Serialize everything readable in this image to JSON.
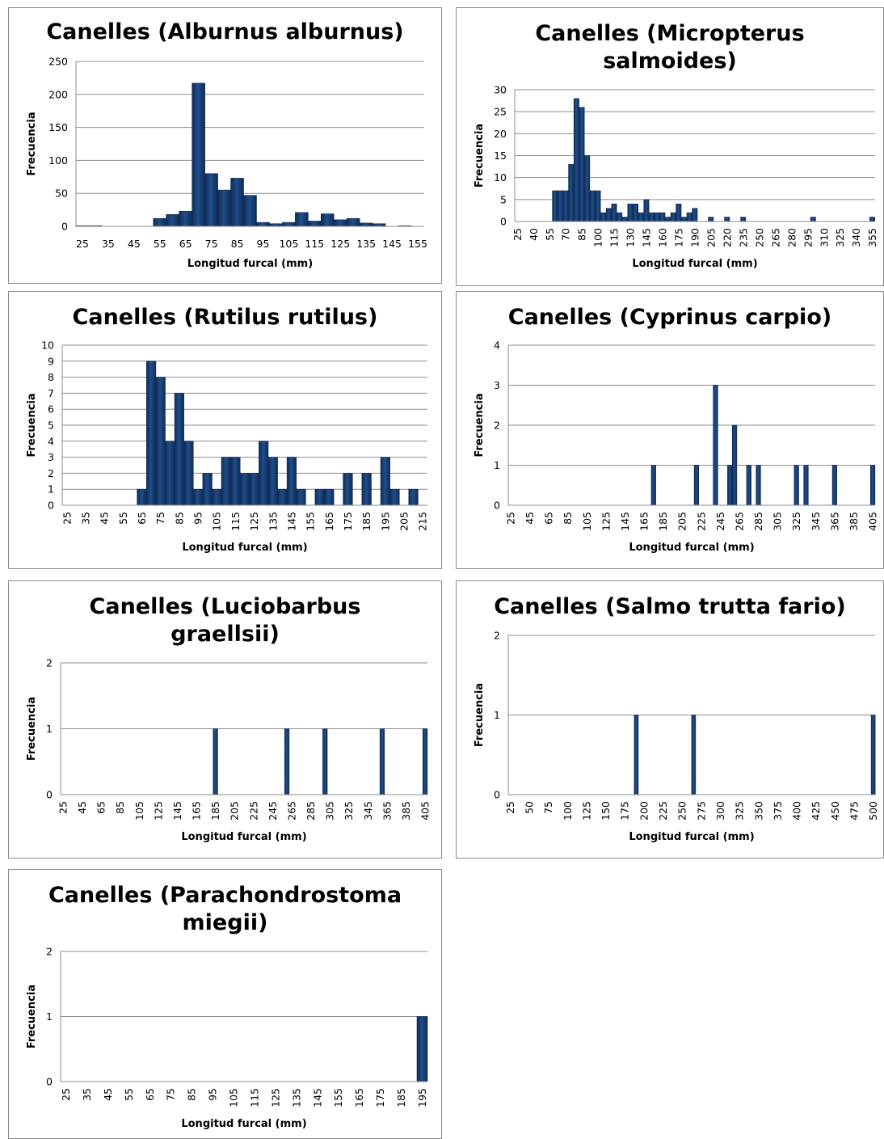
{
  "colors": {
    "bar": "#1f4e8c",
    "bar_dark": "#102c54",
    "grid": "#8c8c8c",
    "axis": "#8c8c8c"
  },
  "chart_data": [
    {
      "type": "bar",
      "title": "Canelles (Alburnus alburnus)",
      "xlabel": "Longitud furcal (mm)",
      "ylabel": "Frecuencia",
      "ylim": [
        0,
        250
      ],
      "yticks": [
        0,
        50,
        100,
        150,
        200,
        250
      ],
      "x_tick_labels": [
        "25",
        "35",
        "45",
        "55",
        "65",
        "75",
        "85",
        "95",
        "105",
        "115",
        "125",
        "135",
        "145",
        "155"
      ],
      "bin_start": 25,
      "bin_width": 5,
      "bin_count": 27,
      "values": {
        "25": 1,
        "30": 1,
        "55": 12,
        "60": 18,
        "65": 23,
        "70": 217,
        "75": 80,
        "80": 55,
        "85": 73,
        "90": 47,
        "95": 6,
        "100": 4,
        "105": 6,
        "110": 21,
        "115": 8,
        "120": 19,
        "125": 10,
        "130": 12,
        "135": 5,
        "140": 4,
        "150": 1
      }
    },
    {
      "type": "bar",
      "title": "Canelles (Micropterus salmoides)",
      "xlabel": "Longitud furcal (mm)",
      "ylabel": "Frecuencia",
      "ylim": [
        0,
        30
      ],
      "yticks": [
        0,
        5,
        10,
        15,
        20,
        25,
        30
      ],
      "x_tick_labels": [
        "25",
        "40",
        "55",
        "70",
        "85",
        "100",
        "115",
        "130",
        "145",
        "160",
        "175",
        "190",
        "205",
        "220",
        "235",
        "250",
        "265",
        "280",
        "295",
        "310",
        "325",
        "340",
        "355"
      ],
      "bin_start": 25,
      "bin_width": 5,
      "bin_count": 67,
      "values": {
        "60": 7,
        "65": 7,
        "70": 7,
        "75": 13,
        "80": 28,
        "85": 26,
        "90": 15,
        "95": 7,
        "100": 7,
        "105": 2,
        "110": 3,
        "115": 4,
        "120": 2,
        "125": 1,
        "130": 4,
        "135": 4,
        "140": 2,
        "145": 5,
        "150": 2,
        "155": 2,
        "160": 2,
        "165": 1,
        "170": 2,
        "175": 4,
        "180": 1,
        "185": 2,
        "190": 3,
        "205": 1,
        "220": 1,
        "235": 1,
        "300": 1,
        "355": 1
      }
    },
    {
      "type": "bar",
      "title": "Canelles (Rutilus rutilus)",
      "xlabel": "Longitud furcal (mm)",
      "ylabel": "Frecuencia",
      "ylim": [
        0,
        10
      ],
      "yticks": [
        0,
        1,
        2,
        3,
        4,
        5,
        6,
        7,
        8,
        9,
        10
      ],
      "x_tick_labels": [
        "25",
        "35",
        "45",
        "55",
        "65",
        "75",
        "85",
        "95",
        "105",
        "115",
        "125",
        "135",
        "145",
        "155",
        "165",
        "175",
        "185",
        "195",
        "205",
        "215"
      ],
      "bin_start": 25,
      "bin_width": 5,
      "bin_count": 39,
      "values": {
        "65": 1,
        "70": 9,
        "75": 8,
        "80": 4,
        "85": 7,
        "90": 4,
        "95": 1,
        "100": 2,
        "105": 1,
        "110": 3,
        "115": 3,
        "120": 2,
        "125": 2,
        "130": 4,
        "135": 3,
        "140": 1,
        "145": 3,
        "150": 1,
        "160": 1,
        "165": 1,
        "175": 2,
        "185": 2,
        "195": 3,
        "200": 1,
        "210": 1
      }
    },
    {
      "type": "bar",
      "title": "Canelles (Cyprinus carpio)",
      "xlabel": "Longitud furcal (mm)",
      "ylabel": "Frecuencia",
      "ylim": [
        0,
        4
      ],
      "yticks": [
        0,
        1,
        2,
        3,
        4
      ],
      "x_tick_labels": [
        "25",
        "45",
        "65",
        "85",
        "105",
        "125",
        "145",
        "165",
        "185",
        "205",
        "225",
        "245",
        "265",
        "285",
        "305",
        "325",
        "345",
        "365",
        "385",
        "405"
      ],
      "bin_start": 25,
      "bin_width": 5,
      "bin_count": 77,
      "values": {
        "175": 1,
        "220": 1,
        "240": 3,
        "255": 1,
        "260": 2,
        "275": 1,
        "285": 1,
        "325": 1,
        "335": 1,
        "365": 1,
        "405": 1
      }
    },
    {
      "type": "bar",
      "title": "Canelles (Luciobarbus graellsii)",
      "xlabel": "Longitud furcal (mm)",
      "ylabel": "Frecuencia",
      "ylim": [
        0,
        2
      ],
      "yticks": [
        0,
        1,
        2
      ],
      "x_tick_labels": [
        "25",
        "45",
        "65",
        "85",
        "105",
        "125",
        "145",
        "165",
        "185",
        "205",
        "225",
        "245",
        "265",
        "285",
        "305",
        "325",
        "345",
        "365",
        "385",
        "405"
      ],
      "bin_start": 25,
      "bin_width": 5,
      "bin_count": 77,
      "values": {
        "185": 1,
        "260": 1,
        "300": 1,
        "360": 1,
        "405": 1
      }
    },
    {
      "type": "bar",
      "title": "Canelles (Salmo trutta fario)",
      "xlabel": "Longitud furcal (mm)",
      "ylabel": "Frecuencia",
      "ylim": [
        0,
        2
      ],
      "yticks": [
        0,
        1,
        2
      ],
      "x_tick_labels": [
        "25",
        "50",
        "75",
        "100",
        "125",
        "150",
        "175",
        "200",
        "225",
        "250",
        "275",
        "300",
        "325",
        "350",
        "375",
        "400",
        "425",
        "450",
        "475",
        "500"
      ],
      "bin_start": 25,
      "bin_width": 5,
      "bin_count": 96,
      "values": {
        "190": 1,
        "265": 1,
        "500": 1
      }
    },
    {
      "type": "bar",
      "title": "Canelles (Parachondrostoma miegii)",
      "xlabel": "Longitud furcal (mm)",
      "ylabel": "Frecuencia",
      "ylim": [
        0,
        2
      ],
      "yticks": [
        0,
        1,
        2
      ],
      "x_tick_labels": [
        "25",
        "35",
        "45",
        "55",
        "65",
        "75",
        "85",
        "95",
        "105",
        "115",
        "125",
        "135",
        "145",
        "155",
        "165",
        "175",
        "185",
        "195"
      ],
      "bin_start": 25,
      "bin_width": 5,
      "bin_count": 35,
      "values": {
        "195": 1
      }
    }
  ]
}
